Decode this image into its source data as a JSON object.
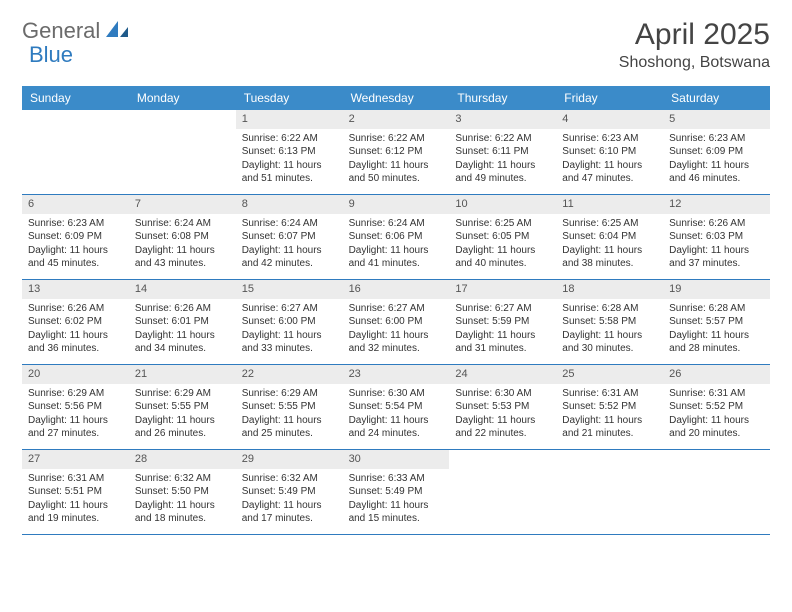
{
  "brand": {
    "name_a": "General",
    "name_b": "Blue"
  },
  "title": "April 2025",
  "location": "Shoshong, Botswana",
  "colors": {
    "header_bg": "#3b8bc9",
    "cell_num_bg": "#ececec",
    "week_border": "#2f7bbf",
    "text": "#333333",
    "title_text": "#444444"
  },
  "day_names": [
    "Sunday",
    "Monday",
    "Tuesday",
    "Wednesday",
    "Thursday",
    "Friday",
    "Saturday"
  ],
  "weeks": [
    [
      null,
      null,
      {
        "n": "1",
        "sr": "Sunrise: 6:22 AM",
        "ss": "Sunset: 6:13 PM",
        "dl": "Daylight: 11 hours and 51 minutes."
      },
      {
        "n": "2",
        "sr": "Sunrise: 6:22 AM",
        "ss": "Sunset: 6:12 PM",
        "dl": "Daylight: 11 hours and 50 minutes."
      },
      {
        "n": "3",
        "sr": "Sunrise: 6:22 AM",
        "ss": "Sunset: 6:11 PM",
        "dl": "Daylight: 11 hours and 49 minutes."
      },
      {
        "n": "4",
        "sr": "Sunrise: 6:23 AM",
        "ss": "Sunset: 6:10 PM",
        "dl": "Daylight: 11 hours and 47 minutes."
      },
      {
        "n": "5",
        "sr": "Sunrise: 6:23 AM",
        "ss": "Sunset: 6:09 PM",
        "dl": "Daylight: 11 hours and 46 minutes."
      }
    ],
    [
      {
        "n": "6",
        "sr": "Sunrise: 6:23 AM",
        "ss": "Sunset: 6:09 PM",
        "dl": "Daylight: 11 hours and 45 minutes."
      },
      {
        "n": "7",
        "sr": "Sunrise: 6:24 AM",
        "ss": "Sunset: 6:08 PM",
        "dl": "Daylight: 11 hours and 43 minutes."
      },
      {
        "n": "8",
        "sr": "Sunrise: 6:24 AM",
        "ss": "Sunset: 6:07 PM",
        "dl": "Daylight: 11 hours and 42 minutes."
      },
      {
        "n": "9",
        "sr": "Sunrise: 6:24 AM",
        "ss": "Sunset: 6:06 PM",
        "dl": "Daylight: 11 hours and 41 minutes."
      },
      {
        "n": "10",
        "sr": "Sunrise: 6:25 AM",
        "ss": "Sunset: 6:05 PM",
        "dl": "Daylight: 11 hours and 40 minutes."
      },
      {
        "n": "11",
        "sr": "Sunrise: 6:25 AM",
        "ss": "Sunset: 6:04 PM",
        "dl": "Daylight: 11 hours and 38 minutes."
      },
      {
        "n": "12",
        "sr": "Sunrise: 6:26 AM",
        "ss": "Sunset: 6:03 PM",
        "dl": "Daylight: 11 hours and 37 minutes."
      }
    ],
    [
      {
        "n": "13",
        "sr": "Sunrise: 6:26 AM",
        "ss": "Sunset: 6:02 PM",
        "dl": "Daylight: 11 hours and 36 minutes."
      },
      {
        "n": "14",
        "sr": "Sunrise: 6:26 AM",
        "ss": "Sunset: 6:01 PM",
        "dl": "Daylight: 11 hours and 34 minutes."
      },
      {
        "n": "15",
        "sr": "Sunrise: 6:27 AM",
        "ss": "Sunset: 6:00 PM",
        "dl": "Daylight: 11 hours and 33 minutes."
      },
      {
        "n": "16",
        "sr": "Sunrise: 6:27 AM",
        "ss": "Sunset: 6:00 PM",
        "dl": "Daylight: 11 hours and 32 minutes."
      },
      {
        "n": "17",
        "sr": "Sunrise: 6:27 AM",
        "ss": "Sunset: 5:59 PM",
        "dl": "Daylight: 11 hours and 31 minutes."
      },
      {
        "n": "18",
        "sr": "Sunrise: 6:28 AM",
        "ss": "Sunset: 5:58 PM",
        "dl": "Daylight: 11 hours and 30 minutes."
      },
      {
        "n": "19",
        "sr": "Sunrise: 6:28 AM",
        "ss": "Sunset: 5:57 PM",
        "dl": "Daylight: 11 hours and 28 minutes."
      }
    ],
    [
      {
        "n": "20",
        "sr": "Sunrise: 6:29 AM",
        "ss": "Sunset: 5:56 PM",
        "dl": "Daylight: 11 hours and 27 minutes."
      },
      {
        "n": "21",
        "sr": "Sunrise: 6:29 AM",
        "ss": "Sunset: 5:55 PM",
        "dl": "Daylight: 11 hours and 26 minutes."
      },
      {
        "n": "22",
        "sr": "Sunrise: 6:29 AM",
        "ss": "Sunset: 5:55 PM",
        "dl": "Daylight: 11 hours and 25 minutes."
      },
      {
        "n": "23",
        "sr": "Sunrise: 6:30 AM",
        "ss": "Sunset: 5:54 PM",
        "dl": "Daylight: 11 hours and 24 minutes."
      },
      {
        "n": "24",
        "sr": "Sunrise: 6:30 AM",
        "ss": "Sunset: 5:53 PM",
        "dl": "Daylight: 11 hours and 22 minutes."
      },
      {
        "n": "25",
        "sr": "Sunrise: 6:31 AM",
        "ss": "Sunset: 5:52 PM",
        "dl": "Daylight: 11 hours and 21 minutes."
      },
      {
        "n": "26",
        "sr": "Sunrise: 6:31 AM",
        "ss": "Sunset: 5:52 PM",
        "dl": "Daylight: 11 hours and 20 minutes."
      }
    ],
    [
      {
        "n": "27",
        "sr": "Sunrise: 6:31 AM",
        "ss": "Sunset: 5:51 PM",
        "dl": "Daylight: 11 hours and 19 minutes."
      },
      {
        "n": "28",
        "sr": "Sunrise: 6:32 AM",
        "ss": "Sunset: 5:50 PM",
        "dl": "Daylight: 11 hours and 18 minutes."
      },
      {
        "n": "29",
        "sr": "Sunrise: 6:32 AM",
        "ss": "Sunset: 5:49 PM",
        "dl": "Daylight: 11 hours and 17 minutes."
      },
      {
        "n": "30",
        "sr": "Sunrise: 6:33 AM",
        "ss": "Sunset: 5:49 PM",
        "dl": "Daylight: 11 hours and 15 minutes."
      },
      null,
      null,
      null
    ]
  ]
}
